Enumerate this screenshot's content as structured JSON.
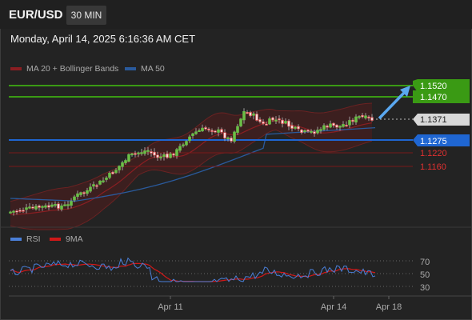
{
  "header": {
    "symbol": "EUR/USD",
    "interval": "30 MIN"
  },
  "datetime": "Monday, April 14, 2025 6:16:36 AM CET",
  "legend": {
    "ma20": {
      "label": "MA 20 + Bollinger Bands",
      "color": "#a0262a"
    },
    "ma50": {
      "label": "MA 50",
      "color": "#2a5a9c"
    }
  },
  "levels": {
    "resistance": [
      {
        "label": "1.1520",
        "color": "#3a9a14"
      },
      {
        "label": "1.1470",
        "color": "#3a9a14"
      }
    ],
    "current": {
      "label": "1.1371",
      "color": "#d8d8d8"
    },
    "pivot": {
      "label": "1.1275",
      "color": "#1f66d2"
    },
    "support": [
      {
        "label": "1.1220",
        "color": "#cc2222"
      },
      {
        "label": "1.1160",
        "color": "#cc2222"
      }
    ]
  },
  "rsi_panel": {
    "legend": [
      {
        "label": "RSI",
        "color": "#4a7fd8"
      },
      {
        "label": "9MA",
        "color": "#d01818"
      }
    ],
    "levels": [
      "70",
      "50",
      "30"
    ]
  },
  "x_axis": [
    "Apr 11",
    "Apr 14",
    "Apr 18"
  ],
  "colors": {
    "bull": "#6abf47",
    "bear": "#e04848",
    "arrow": "#5aa8f0",
    "band": "#5a1a1a"
  }
}
